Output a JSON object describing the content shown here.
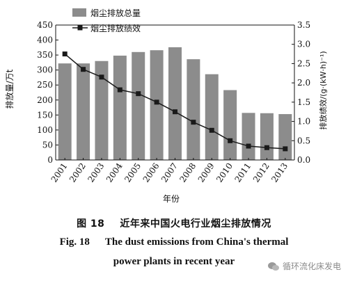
{
  "chart_data": {
    "type": "bar",
    "categories": [
      "2001",
      "2002",
      "2003",
      "2004",
      "2005",
      "2006",
      "2007",
      "2008",
      "2009",
      "2010",
      "2011",
      "2012",
      "2013"
    ],
    "series": [
      {
        "name": "烟尘排放总量",
        "kind": "bar",
        "axis": "left",
        "values": [
          322,
          322,
          330,
          348,
          360,
          366,
          376,
          336,
          286,
          233,
          157,
          156,
          153
        ]
      },
      {
        "name": "烟尘排放绩效",
        "kind": "line",
        "axis": "right",
        "values": [
          2.75,
          2.35,
          2.15,
          1.82,
          1.72,
          1.5,
          1.25,
          0.98,
          0.77,
          0.5,
          0.36,
          0.32,
          0.29
        ]
      }
    ],
    "xlabel": "年份",
    "ylabel": "排放量/万t",
    "y2label": "排放绩效/(g·(kW·h)⁻¹)",
    "ylim": [
      0,
      450
    ],
    "y2lim": [
      0,
      3.5
    ],
    "yticks": [
      "0",
      "50",
      "100",
      "150",
      "200",
      "250",
      "300",
      "350",
      "400",
      "450"
    ],
    "y2ticks": [
      "0.0",
      "0.5",
      "1.0",
      "1.5",
      "2.0",
      "2.5",
      "3.0",
      "3.5"
    ],
    "legend_position": "top-left",
    "grid": false,
    "colors": {
      "bar": "#8c8c8c",
      "line": "#1a1a1a",
      "axis": "#111111"
    }
  },
  "caption": {
    "zh_number": "图 18",
    "zh_text": "近年来中国火电行业烟尘排放情况",
    "en_number": "Fig. 18",
    "en_text_line1": "The dust emissions from China's thermal",
    "en_text_line2": "power plants in recent year"
  },
  "watermark": {
    "text": "循环流化床发电",
    "icon": "wechat-icon"
  }
}
